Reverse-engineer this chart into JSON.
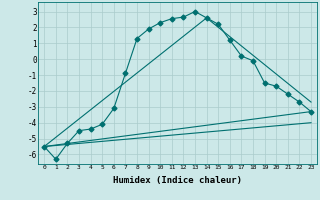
{
  "xlabel": "Humidex (Indice chaleur)",
  "bg_color": "#cce8e8",
  "grid_color": "#aacccc",
  "line_color": "#007070",
  "xlim": [
    -0.5,
    23.5
  ],
  "ylim": [
    -6.6,
    3.6
  ],
  "xticks": [
    0,
    1,
    2,
    3,
    4,
    5,
    6,
    7,
    8,
    9,
    10,
    11,
    12,
    13,
    14,
    15,
    16,
    17,
    18,
    19,
    20,
    21,
    22,
    23
  ],
  "yticks": [
    -6,
    -5,
    -4,
    -3,
    -2,
    -1,
    0,
    1,
    2,
    3
  ],
  "curve1_x": [
    0,
    1,
    2,
    3,
    4,
    5,
    6,
    7,
    8,
    9,
    10,
    11,
    12,
    13,
    14,
    15,
    16,
    17,
    18,
    19,
    20,
    21,
    22,
    23
  ],
  "curve1_y": [
    -5.5,
    -6.3,
    -5.3,
    -4.5,
    -4.4,
    -4.1,
    -3.1,
    -0.9,
    1.3,
    1.9,
    2.3,
    2.55,
    2.65,
    3.0,
    2.6,
    2.2,
    1.2,
    0.2,
    -0.1,
    -1.5,
    -1.7,
    -2.2,
    -2.7,
    -3.3
  ],
  "line1_x": [
    0,
    23
  ],
  "line1_y": [
    -5.5,
    -3.3
  ],
  "line2_x": [
    0,
    23
  ],
  "line2_y": [
    -5.5,
    -4.0
  ],
  "line3_x": [
    0,
    14,
    23
  ],
  "line3_y": [
    -5.5,
    2.6,
    -2.7
  ]
}
